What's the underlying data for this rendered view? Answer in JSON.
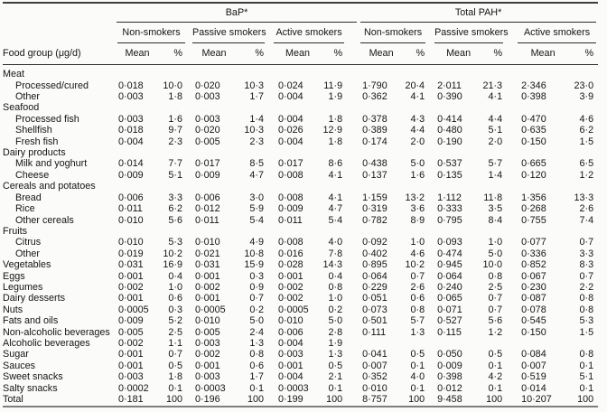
{
  "table": {
    "row_header": "Food group (μg/d)",
    "group_headers": [
      "BaP*",
      "Total PAH*"
    ],
    "sub_headers": [
      "Non-smokers",
      "Passive smokers",
      "Active smokers"
    ],
    "value_headers": [
      "Mean",
      "%"
    ],
    "rows": [
      {
        "label": "Meat",
        "indent": 0,
        "values": [
          "",
          "",
          "",
          "",
          "",
          "",
          "",
          "",
          "",
          "",
          "",
          ""
        ]
      },
      {
        "label": "Processed/cured",
        "indent": 1,
        "values": [
          "0·018",
          "10·0",
          "0·020",
          "10·3",
          "0·024",
          "11·9",
          "1·790",
          "20·4",
          "2·011",
          "21·3",
          "2·346",
          "23·0"
        ]
      },
      {
        "label": "Other",
        "indent": 1,
        "values": [
          "0·003",
          "1·8",
          "0·003",
          "1·7",
          "0·004",
          "1·9",
          "0·362",
          "4·1",
          "0·390",
          "4·1",
          "0·398",
          "3·9"
        ]
      },
      {
        "label": "Seafood",
        "indent": 0,
        "values": [
          "",
          "",
          "",
          "",
          "",
          "",
          "",
          "",
          "",
          "",
          "",
          ""
        ]
      },
      {
        "label": "Processed fish",
        "indent": 1,
        "values": [
          "0·003",
          "1·6",
          "0·003",
          "1·4",
          "0·004",
          "1·8",
          "0·378",
          "4·3",
          "0·414",
          "4·4",
          "0·470",
          "4·6"
        ]
      },
      {
        "label": "Shellfish",
        "indent": 1,
        "values": [
          "0·018",
          "9·7",
          "0·020",
          "10·3",
          "0·026",
          "12·9",
          "0·389",
          "4·4",
          "0·480",
          "5·1",
          "0·635",
          "6·2"
        ]
      },
      {
        "label": "Fresh fish",
        "indent": 1,
        "values": [
          "0·004",
          "2·3",
          "0·005",
          "2·3",
          "0·004",
          "1·8",
          "0·174",
          "2·0",
          "0·190",
          "2·0",
          "0·150",
          "1·5"
        ]
      },
      {
        "label": "Dairy products",
        "indent": 0,
        "values": [
          "",
          "",
          "",
          "",
          "",
          "",
          "",
          "",
          "",
          "",
          "",
          ""
        ]
      },
      {
        "label": "Milk and yoghurt",
        "indent": 1,
        "values": [
          "0·014",
          "7·7",
          "0·017",
          "8·5",
          "0·017",
          "8·6",
          "0·438",
          "5·0",
          "0·537",
          "5·7",
          "0·665",
          "6·5"
        ]
      },
      {
        "label": "Cheese",
        "indent": 1,
        "values": [
          "0·009",
          "5·1",
          "0·009",
          "4·7",
          "0·008",
          "4·1",
          "0·137",
          "1·6",
          "0·135",
          "1·4",
          "0·120",
          "1·2"
        ]
      },
      {
        "label": "Cereals and potatoes",
        "indent": 0,
        "values": [
          "",
          "",
          "",
          "",
          "",
          "",
          "",
          "",
          "",
          "",
          "",
          ""
        ]
      },
      {
        "label": "Bread",
        "indent": 1,
        "values": [
          "0·006",
          "3·3",
          "0·006",
          "3·0",
          "0·008",
          "4·1",
          "1·159",
          "13·2",
          "1·112",
          "11·8",
          "1·356",
          "13·3"
        ]
      },
      {
        "label": "Rice",
        "indent": 1,
        "values": [
          "0·011",
          "6·2",
          "0·012",
          "5·9",
          "0·009",
          "4·7",
          "0·319",
          "3·6",
          "0·333",
          "3·5",
          "0·268",
          "2·6"
        ]
      },
      {
        "label": "Other cereals",
        "indent": 1,
        "values": [
          "0·010",
          "5·6",
          "0·011",
          "5·4",
          "0·011",
          "5·4",
          "0·782",
          "8·9",
          "0·795",
          "8·4",
          "0·755",
          "7·4"
        ]
      },
      {
        "label": "Fruits",
        "indent": 0,
        "values": [
          "",
          "",
          "",
          "",
          "",
          "",
          "",
          "",
          "",
          "",
          "",
          ""
        ]
      },
      {
        "label": "Citrus",
        "indent": 1,
        "values": [
          "0·010",
          "5·3",
          "0·010",
          "4·9",
          "0·008",
          "4·0",
          "0·092",
          "1·0",
          "0·093",
          "1·0",
          "0·077",
          "0·7"
        ]
      },
      {
        "label": "Other",
        "indent": 1,
        "values": [
          "0·019",
          "10·2",
          "0·021",
          "10·8",
          "0·016",
          "7·8",
          "0·402",
          "4·6",
          "0·474",
          "5·0",
          "0·336",
          "3·3"
        ]
      },
      {
        "label": "Vegetables",
        "indent": 0,
        "values": [
          "0·031",
          "16·9",
          "0·031",
          "15·9",
          "0·028",
          "14·3",
          "0·895",
          "10·2",
          "0·945",
          "10·0",
          "0·852",
          "8·3"
        ]
      },
      {
        "label": "Eggs",
        "indent": 0,
        "values": [
          "0·001",
          "0·4",
          "0·001",
          "0·3",
          "0·001",
          "0·4",
          "0·064",
          "0·7",
          "0·064",
          "0·8",
          "0·067",
          "0·7"
        ]
      },
      {
        "label": "Legumes",
        "indent": 0,
        "values": [
          "0·002",
          "1·0",
          "0·002",
          "0·9",
          "0·002",
          "0·8",
          "0·229",
          "2·6",
          "0·240",
          "2·5",
          "0·230",
          "2·2"
        ]
      },
      {
        "label": "Dairy desserts",
        "indent": 0,
        "values": [
          "0·001",
          "0·6",
          "0·001",
          "0·7",
          "0·002",
          "1·0",
          "0·051",
          "0·6",
          "0·065",
          "0·7",
          "0·087",
          "0·8"
        ]
      },
      {
        "label": "Nuts",
        "indent": 0,
        "values": [
          "0·0005",
          "0·3",
          "0·0005",
          "0·2",
          "0·0005",
          "0·2",
          "0·073",
          "0·8",
          "0·071",
          "0·7",
          "0·078",
          "0·8"
        ]
      },
      {
        "label": "Fats and oils",
        "indent": 0,
        "values": [
          "0·009",
          "5·2",
          "0·010",
          "5·0",
          "0·010",
          "5·0",
          "0·501",
          "5·7",
          "0·527",
          "5·6",
          "0·545",
          "5·3"
        ]
      },
      {
        "label": "Non-alcoholic beverages",
        "indent": 0,
        "values": [
          "0·005",
          "2·5",
          "0·005",
          "2·4",
          "0·006",
          "2·8",
          "0·111",
          "1·3",
          "0·115",
          "1·2",
          "0·150",
          "1·5"
        ]
      },
      {
        "label": "Alcoholic beverages",
        "indent": 0,
        "values": [
          "0·002",
          "1·1",
          "0·003",
          "1·3",
          "0·004",
          "1·9",
          "",
          "",
          "",
          "",
          "",
          ""
        ]
      },
      {
        "label": "Sugar",
        "indent": 0,
        "values": [
          "0·001",
          "0·7",
          "0·002",
          "0·8",
          "0·003",
          "1·3",
          "0·041",
          "0·5",
          "0·050",
          "0·5",
          "0·084",
          "0·8"
        ]
      },
      {
        "label": "Sauces",
        "indent": 0,
        "values": [
          "0·001",
          "0·5",
          "0·001",
          "0·6",
          "0·001",
          "0·5",
          "0·007",
          "0·1",
          "0·009",
          "0·1",
          "0·007",
          "0·1"
        ]
      },
      {
        "label": "Sweet snacks",
        "indent": 0,
        "values": [
          "0·003",
          "1·8",
          "0·003",
          "1·7",
          "0·004",
          "2·1",
          "0·352",
          "4·0",
          "0·398",
          "4·2",
          "0·519",
          "5·1"
        ]
      },
      {
        "label": "Salty snacks",
        "indent": 0,
        "values": [
          "0·0002",
          "0·1",
          "0·0003",
          "0·1",
          "0·0003",
          "0·1",
          "0·010",
          "0·1",
          "0·012",
          "0·1",
          "0·014",
          "0·1"
        ]
      },
      {
        "label": "Total",
        "indent": 0,
        "values": [
          "0·181",
          "100",
          "0·196",
          "100",
          "0·199",
          "100",
          "8·757",
          "100",
          "9·458",
          "100",
          "10·207",
          "100"
        ]
      }
    ]
  }
}
